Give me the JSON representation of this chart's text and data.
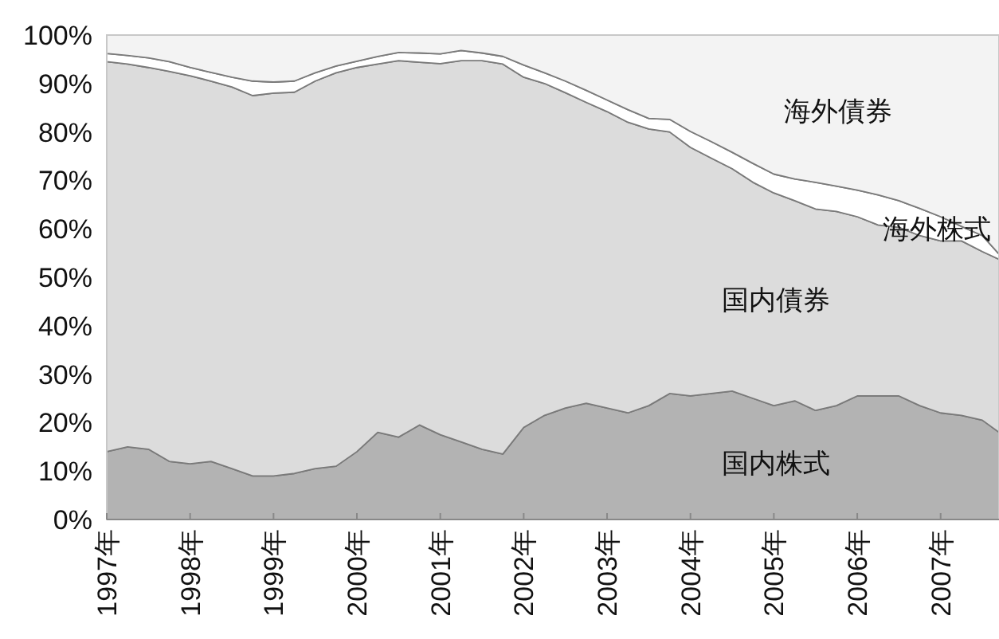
{
  "chart_data": {
    "type": "area",
    "stacked": true,
    "x": [
      1997.0,
      1997.25,
      1997.5,
      1997.75,
      1998.0,
      1998.25,
      1998.5,
      1998.75,
      1999.0,
      1999.25,
      1999.5,
      1999.75,
      2000.0,
      2000.25,
      2000.5,
      2000.75,
      2001.0,
      2001.25,
      2001.5,
      2001.75,
      2002.0,
      2002.25,
      2002.5,
      2002.75,
      2003.0,
      2003.25,
      2003.5,
      2003.75,
      2004.0,
      2004.25,
      2004.5,
      2004.75,
      2005.0,
      2005.25,
      2005.5,
      2005.75,
      2006.0,
      2006.25,
      2006.5,
      2006.75,
      2007.0,
      2007.25,
      2007.5,
      2007.7
    ],
    "xlim": [
      1997,
      2007.7
    ],
    "xticks": [
      {
        "value": 1997,
        "label": "1997年"
      },
      {
        "value": 1998,
        "label": "1998年"
      },
      {
        "value": 1999,
        "label": "1999年"
      },
      {
        "value": 2000,
        "label": "2000年"
      },
      {
        "value": 2001,
        "label": "2001年"
      },
      {
        "value": 2002,
        "label": "2002年"
      },
      {
        "value": 2003,
        "label": "2003年"
      },
      {
        "value": 2004,
        "label": "2004年"
      },
      {
        "value": 2005,
        "label": "2005年"
      },
      {
        "value": 2006,
        "label": "2006年"
      },
      {
        "value": 2007,
        "label": "2007年"
      }
    ],
    "ylim": [
      0,
      100
    ],
    "yticks": [
      {
        "value": 0,
        "label": "0%"
      },
      {
        "value": 10,
        "label": "10%"
      },
      {
        "value": 20,
        "label": "20%"
      },
      {
        "value": 30,
        "label": "30%"
      },
      {
        "value": 40,
        "label": "40%"
      },
      {
        "value": 50,
        "label": "50%"
      },
      {
        "value": 60,
        "label": "60%"
      },
      {
        "value": 70,
        "label": "70%"
      },
      {
        "value": 80,
        "label": "80%"
      },
      {
        "value": 90,
        "label": "90%"
      },
      {
        "value": 100,
        "label": "100%"
      }
    ],
    "grid": false,
    "series": [
      {
        "name": "国内株式",
        "color": "#b3b3b3",
        "values": [
          14,
          15,
          14.5,
          12,
          11.5,
          12,
          10.5,
          9,
          9,
          9.5,
          10.5,
          11,
          14,
          18,
          17,
          19.5,
          17.5,
          16,
          14.5,
          13.5,
          19,
          21.5,
          23,
          24,
          23,
          22,
          23.5,
          26,
          25.5,
          26,
          26.5,
          25,
          23.5,
          24.5,
          22.5,
          23.5,
          25.5,
          25.5,
          25.5,
          23.5,
          22,
          21.5,
          20.5,
          18
        ]
      },
      {
        "name": "国内債券",
        "color": "#dcdcdc",
        "values": [
          80.5,
          79,
          78.8,
          80.5,
          80.1,
          78.5,
          78.8,
          78.5,
          79,
          78.7,
          80,
          81.2,
          79.3,
          76,
          77.7,
          74.9,
          76.6,
          78.7,
          80.2,
          80.5,
          72.3,
          68.5,
          65.1,
          62.1,
          61.2,
          60,
          57.1,
          54,
          51.3,
          48.6,
          45.9,
          44.6,
          43.9,
          41.3,
          41.6,
          40.1,
          37,
          35.3,
          34.8,
          35.1,
          35.5,
          36,
          34.8,
          35.7
        ]
      },
      {
        "name": "海外株式",
        "color": "#ffffff",
        "values": [
          1.7,
          1.8,
          2,
          2,
          1.7,
          1.8,
          2,
          3,
          2.3,
          2.3,
          1.7,
          1.4,
          1.3,
          1.6,
          1.7,
          1.9,
          2,
          2.1,
          1.6,
          1.6,
          2.5,
          2.2,
          2.4,
          2.5,
          2.4,
          2.6,
          2.2,
          2.6,
          3.3,
          3.4,
          3.4,
          3.9,
          3.9,
          4.5,
          5.5,
          5.2,
          5.5,
          6.2,
          5.5,
          5.6,
          5,
          3,
          3.3,
          1.1
        ]
      },
      {
        "name": "海外債券",
        "color": "#f3f3f3",
        "values": [
          3.8,
          4.2,
          4.7,
          5.5,
          6.7,
          7.7,
          8.7,
          9.5,
          9.7,
          9.5,
          7.8,
          6.4,
          5.4,
          4.4,
          3.6,
          3.7,
          3.9,
          3.2,
          3.7,
          4.4,
          6.2,
          7.8,
          9.5,
          11.4,
          13.4,
          15.4,
          17.2,
          17.4,
          19.9,
          22,
          24.2,
          26.5,
          28.7,
          29.7,
          30.4,
          31.2,
          32,
          33,
          34.2,
          35.8,
          37.5,
          39.5,
          41.4,
          45.2
        ]
      }
    ]
  }
}
